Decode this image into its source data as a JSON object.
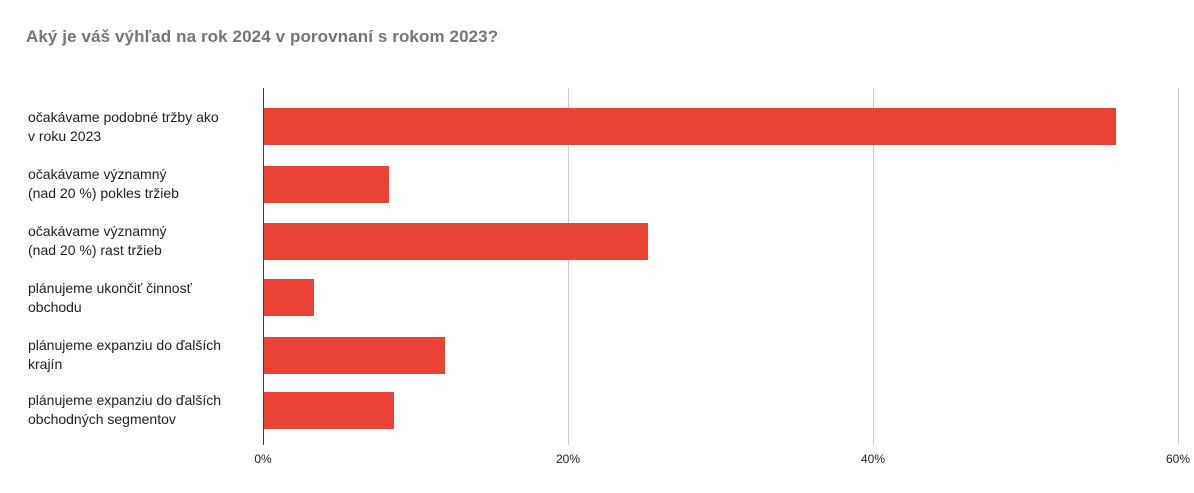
{
  "title": "Aký je váš výhľad na rok 2024 v porovnaní s rokom 2023?",
  "colors": {
    "bar": "#EA4335",
    "axis_baseline": "#424242",
    "gridline": "#cccccc",
    "title_text": "#757575",
    "label_text": "#212121",
    "tick_text": "#222222",
    "background": "#ffffff"
  },
  "chart_data": {
    "type": "bar",
    "orientation": "horizontal",
    "title": "Aký je váš výhľad na rok 2024 v porovnaní s rokom 2023?",
    "categories": [
      "očakávame podobné tržby ako v roku 2023",
      "očakávame významný (nad 20 %) pokles tržieb",
      "očakávame významný (nad 20 %) rast tržieb",
      "plánujeme ukončiť činnosť obchodu",
      "plánujeme expanziu do ďalších krajín",
      "plánujeme expanziu do ďalších obchodných segmentov"
    ],
    "category_label_lines": [
      [
        "očakávame podobné tržby ako",
        "v roku 2023"
      ],
      [
        "očakávame významný",
        "(nad 20 %) pokles tržieb"
      ],
      [
        "očakávame významný",
        "(nad 20 %) rast tržieb"
      ],
      [
        "plánujeme ukončiť činnosť",
        "obchodu"
      ],
      [
        "plánujeme expanziu do ďalších",
        "krajín"
      ],
      [
        "plánujeme expanziu do ďalších",
        "obchodných segmentov"
      ]
    ],
    "values": [
      55.9,
      8.2,
      25.2,
      3.3,
      11.9,
      8.5
    ],
    "unit": "%",
    "xlabel": "",
    "ylabel": "",
    "xlim": [
      0,
      60
    ],
    "xticks": [
      0,
      20,
      40,
      60
    ],
    "xtick_labels": [
      "0%",
      "20%",
      "40%",
      "60%"
    ],
    "grid": true,
    "legend": "none"
  }
}
